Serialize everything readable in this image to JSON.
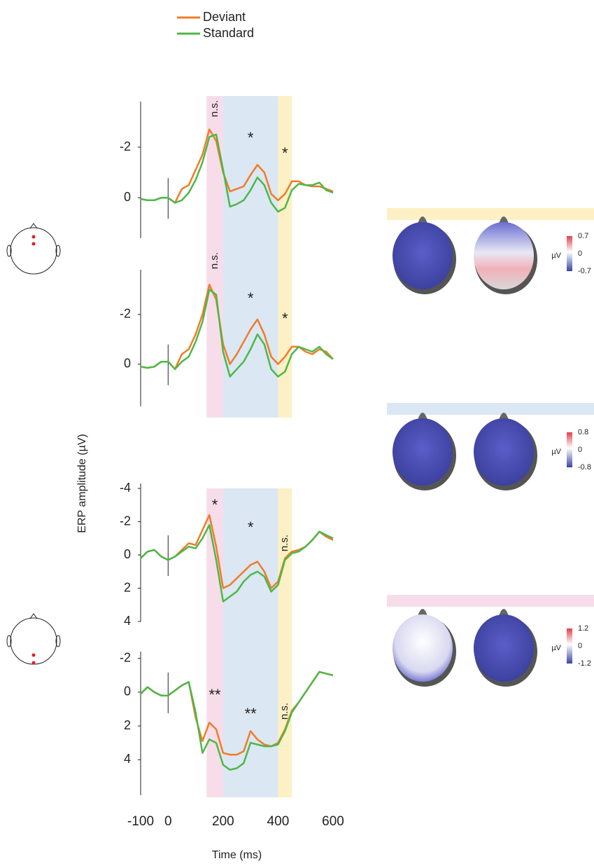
{
  "chart_data": [
    {
      "type": "line",
      "x": [
        -100,
        -75,
        -50,
        -25,
        0,
        25,
        50,
        75,
        100,
        125,
        150,
        175,
        200,
        225,
        250,
        275,
        300,
        325,
        350,
        375,
        400,
        425,
        450,
        475,
        500,
        525,
        550,
        575,
        600
      ],
      "xlim": [
        -100,
        600
      ],
      "ylim": [
        -3.8,
        1.6
      ],
      "yticks": [
        -2,
        0
      ],
      "inverted_y": true,
      "series": [
        {
          "name": "Deviant",
          "color": "#f07c28",
          "values": [
            0.05,
            0.1,
            0.1,
            0,
            0,
            0.2,
            -0.35,
            -0.5,
            -1.1,
            -1.7,
            -2.7,
            -2.25,
            -1.0,
            -0.25,
            -0.35,
            -0.45,
            -0.9,
            -1.3,
            -1.0,
            -0.15,
            0.1,
            -0.15,
            -0.65,
            -0.65,
            -0.5,
            -0.45,
            -0.45,
            -0.35,
            -0.25
          ]
        },
        {
          "name": "Standard",
          "color": "#4cb848",
          "values": [
            0.05,
            0.1,
            0.1,
            0,
            0,
            0.2,
            0.1,
            -0.2,
            -0.7,
            -1.4,
            -2.4,
            -2.5,
            -1.1,
            0.35,
            0.25,
            0.1,
            -0.3,
            -0.8,
            -0.5,
            0.2,
            0.55,
            0.4,
            -0.3,
            -0.55,
            -0.5,
            -0.5,
            -0.6,
            -0.3,
            -0.2
          ]
        }
      ],
      "regions": [
        {
          "start": 140,
          "end": 200,
          "color": "#f7dde9",
          "label": "n.s."
        },
        {
          "start": 200,
          "end": 400,
          "color": "#dbe7f3",
          "label": "*"
        },
        {
          "start": 400,
          "end": 450,
          "color": "#fdf0c4",
          "label": "*"
        }
      ]
    },
    {
      "type": "line",
      "x": [
        -100,
        -75,
        -50,
        -25,
        0,
        25,
        50,
        75,
        100,
        125,
        150,
        175,
        200,
        225,
        250,
        275,
        300,
        325,
        350,
        375,
        400,
        425,
        450,
        475,
        500,
        525,
        550,
        575,
        600
      ],
      "xlim": [
        -100,
        600
      ],
      "ylim": [
        -3.8,
        1.7
      ],
      "yticks": [
        -2,
        0
      ],
      "inverted_y": true,
      "series": [
        {
          "name": "Deviant",
          "color": "#f07c28",
          "values": [
            0.1,
            0.15,
            0.1,
            -0.1,
            -0.1,
            0.2,
            -0.4,
            -0.6,
            -1.2,
            -2.0,
            -3.2,
            -2.6,
            -0.8,
            0,
            -0.4,
            -0.9,
            -1.4,
            -1.8,
            -1.2,
            -0.3,
            0,
            -0.3,
            -0.7,
            -0.7,
            -0.5,
            -0.4,
            -0.6,
            -0.5,
            -0.2
          ]
        },
        {
          "name": "Standard",
          "color": "#4cb848",
          "values": [
            0.1,
            0.15,
            0.1,
            -0.1,
            -0.1,
            0.2,
            -0.1,
            -0.3,
            -0.9,
            -1.7,
            -3.0,
            -2.8,
            -0.5,
            0.5,
            0.2,
            -0.1,
            -0.6,
            -1.2,
            -0.8,
            0.2,
            0.5,
            0.3,
            -0.4,
            -0.7,
            -0.6,
            -0.5,
            -0.7,
            -0.4,
            -0.2
          ]
        }
      ],
      "regions": [
        {
          "start": 140,
          "end": 200,
          "color": "#f7dde9",
          "label": "n.s."
        },
        {
          "start": 200,
          "end": 400,
          "color": "#dbe7f3",
          "label": "*"
        },
        {
          "start": 400,
          "end": 450,
          "color": "#fdf0c4",
          "label": "*"
        }
      ]
    },
    {
      "type": "line",
      "x": [
        -100,
        -75,
        -50,
        -25,
        0,
        25,
        50,
        75,
        100,
        125,
        150,
        175,
        200,
        225,
        250,
        275,
        300,
        325,
        350,
        375,
        400,
        425,
        450,
        475,
        500,
        525,
        550,
        575,
        600
      ],
      "xlim": [
        -100,
        600
      ],
      "ylim": [
        -4.3,
        4
      ],
      "yticks": [
        -4,
        -2,
        0,
        2,
        4
      ],
      "inverted_y": true,
      "series": [
        {
          "name": "Deviant",
          "color": "#f07c28",
          "values": [
            0.2,
            -0.2,
            -0.3,
            0.1,
            0.3,
            0.1,
            -0.3,
            -0.7,
            -0.6,
            -1.5,
            -2.4,
            -0.5,
            2.0,
            1.8,
            1.4,
            1.0,
            0.6,
            0.4,
            1.0,
            2.0,
            1.6,
            0.2,
            -0.2,
            -0.3,
            -0.5,
            -0.9,
            -1.4,
            -1.1,
            -0.9
          ]
        },
        {
          "name": "Standard",
          "color": "#4cb848",
          "values": [
            0.2,
            -0.2,
            -0.3,
            0.1,
            0.3,
            0.1,
            -0.2,
            -0.5,
            -0.4,
            -1.0,
            -1.8,
            0.3,
            2.8,
            2.5,
            2.2,
            1.6,
            1.2,
            1.0,
            1.3,
            2.2,
            1.8,
            0.3,
            -0.1,
            -0.2,
            -0.5,
            -0.9,
            -1.4,
            -1.2,
            -1.0
          ]
        }
      ],
      "regions": [
        {
          "start": 140,
          "end": 200,
          "color": "#f7dde9",
          "label": "*"
        },
        {
          "start": 200,
          "end": 400,
          "color": "#dbe7f3",
          "label": "*"
        },
        {
          "start": 400,
          "end": 450,
          "color": "#fdf0c4",
          "label": "n.s."
        }
      ]
    },
    {
      "type": "line",
      "x": [
        -100,
        -75,
        -50,
        -25,
        0,
        25,
        50,
        75,
        100,
        125,
        150,
        175,
        200,
        225,
        250,
        275,
        300,
        325,
        350,
        375,
        400,
        425,
        450,
        475,
        500,
        525,
        550,
        575,
        600
      ],
      "xlim": [
        -100,
        600
      ],
      "ylim": [
        -2.4,
        6.1
      ],
      "yticks": [
        -2,
        0,
        2,
        4
      ],
      "inverted_y": true,
      "xticks": [
        -100,
        0,
        200,
        400,
        600
      ],
      "xlabel": "Time (ms)",
      "series": [
        {
          "name": "Deviant",
          "color": "#f07c28",
          "values": [
            0.1,
            -0.3,
            0,
            0.2,
            0.2,
            -0.1,
            -0.4,
            -0.6,
            1.5,
            2.9,
            1.8,
            2.2,
            3.6,
            3.7,
            3.7,
            3.5,
            2.3,
            2.8,
            3.1,
            3.2,
            3.0,
            2.2,
            1.1,
            0.6,
            0,
            -0.6,
            -1.2,
            -1.1,
            -1.0
          ]
        },
        {
          "name": "Standard",
          "color": "#4cb848",
          "values": [
            0.1,
            -0.3,
            0,
            0.2,
            0.2,
            -0.1,
            -0.4,
            -0.6,
            1.2,
            3.6,
            2.8,
            3.0,
            4.3,
            4.6,
            4.5,
            4.2,
            3.0,
            3.1,
            3.2,
            3.2,
            3.1,
            2.3,
            1.2,
            0.6,
            0,
            -0.6,
            -1.2,
            -1.1,
            -1.0
          ]
        }
      ],
      "regions": [
        {
          "start": 140,
          "end": 200,
          "color": "#f7dde9",
          "label": "**"
        },
        {
          "start": 200,
          "end": 400,
          "color": "#dbe7f3",
          "label": "**"
        },
        {
          "start": 400,
          "end": 450,
          "color": "#fdf0c4",
          "label": "n.s."
        }
      ]
    }
  ],
  "ylabel": "ERP amplitude (µV)",
  "topomaps": [
    {
      "bar_color": "#fdf0c4",
      "unit": "µV",
      "colorbar_ticks": [
        0.7,
        0,
        -0.7
      ]
    },
    {
      "bar_color": "#dbe7f3",
      "unit": "µV",
      "colorbar_ticks": [
        0.8,
        0,
        -0.8
      ]
    },
    {
      "bar_color": "#f7dde9",
      "unit": "µV",
      "colorbar_ticks": [
        1.2,
        0,
        -1.2
      ]
    }
  ]
}
